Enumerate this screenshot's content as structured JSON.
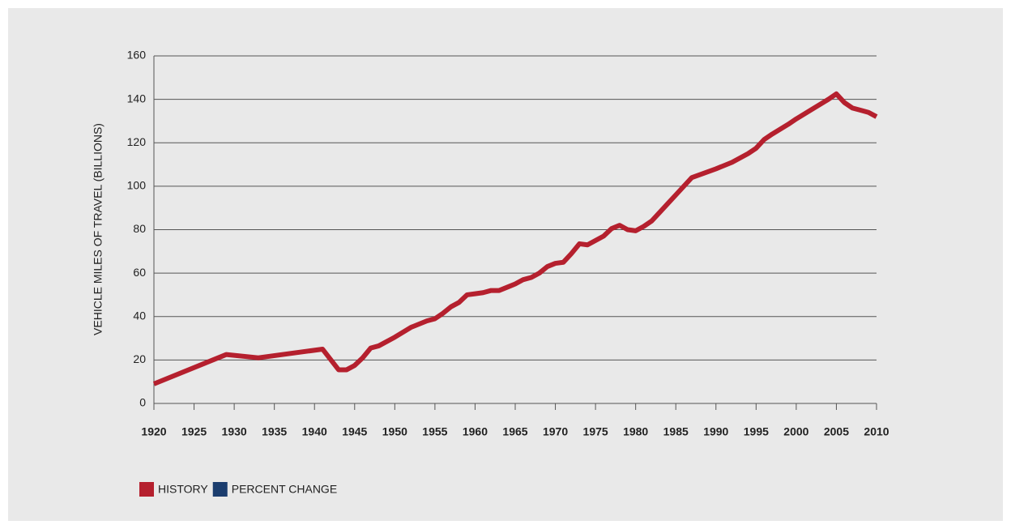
{
  "chart_data": {
    "type": "line",
    "y_label": "VEHICLE MILES OF TRAVEL (BILLIONS)",
    "x": [
      1920,
      1929,
      1933,
      1941,
      1943,
      1944,
      1945,
      1946,
      1947,
      1948,
      1950,
      1952,
      1954,
      1955,
      1956,
      1957,
      1958,
      1959,
      1960,
      1961,
      1962,
      1963,
      1964,
      1965,
      1966,
      1967,
      1968,
      1969,
      1970,
      1971,
      1972,
      1973,
      1974,
      1975,
      1976,
      1977,
      1978,
      1979,
      1980,
      1981,
      1982,
      1983,
      1984,
      1985,
      1987,
      1990,
      1992,
      1993,
      1994,
      1995,
      1996,
      1997,
      1999,
      2000,
      2002,
      2004,
      2005,
      2006,
      2007,
      2008,
      2009,
      2010
    ],
    "series": [
      {
        "name": "HISTORY",
        "color": "#b5202e",
        "values": [
          9,
          22.5,
          21,
          25,
          15.5,
          15.5,
          17.5,
          21,
          25.5,
          26.5,
          30.5,
          35,
          38,
          39,
          41.5,
          44.5,
          46.5,
          50,
          50.5,
          51,
          52,
          52,
          53.5,
          55,
          57,
          58,
          60,
          63,
          64.5,
          65,
          69,
          73.5,
          73,
          75,
          77,
          80.5,
          82,
          80,
          79.5,
          81.5,
          84,
          88,
          92,
          96,
          104,
          108,
          111,
          113,
          115,
          117.5,
          121.5,
          124,
          128.5,
          131,
          135.5,
          140,
          142.5,
          138.5,
          136,
          135,
          134,
          132
        ]
      },
      {
        "name": "PERCENT CHANGE",
        "color": "#1b3d6e",
        "values": [
          null,
          null,
          null,
          null,
          null,
          null,
          null,
          null,
          null,
          null,
          null,
          null,
          null,
          null,
          null,
          null,
          null,
          null,
          null,
          null,
          null,
          null,
          null,
          null,
          null,
          null,
          null,
          null,
          null,
          null,
          null,
          null,
          null,
          null,
          null,
          null,
          null,
          null,
          null,
          null,
          null,
          null,
          null,
          null,
          null,
          null,
          null,
          null,
          null,
          null,
          null,
          null,
          null,
          null,
          null,
          null,
          null,
          null,
          null,
          null,
          null,
          null
        ]
      }
    ],
    "xlim": [
      1920,
      2010
    ],
    "xticks": [
      1920,
      1925,
      1930,
      1935,
      1940,
      1945,
      1950,
      1955,
      1960,
      1965,
      1970,
      1975,
      1980,
      1985,
      1990,
      1995,
      2000,
      2005,
      2010
    ],
    "ylim": [
      0,
      160
    ],
    "yticks": [
      0,
      20,
      40,
      60,
      80,
      100,
      120,
      140,
      160
    ],
    "grid": true,
    "legend": "bottom-left"
  }
}
